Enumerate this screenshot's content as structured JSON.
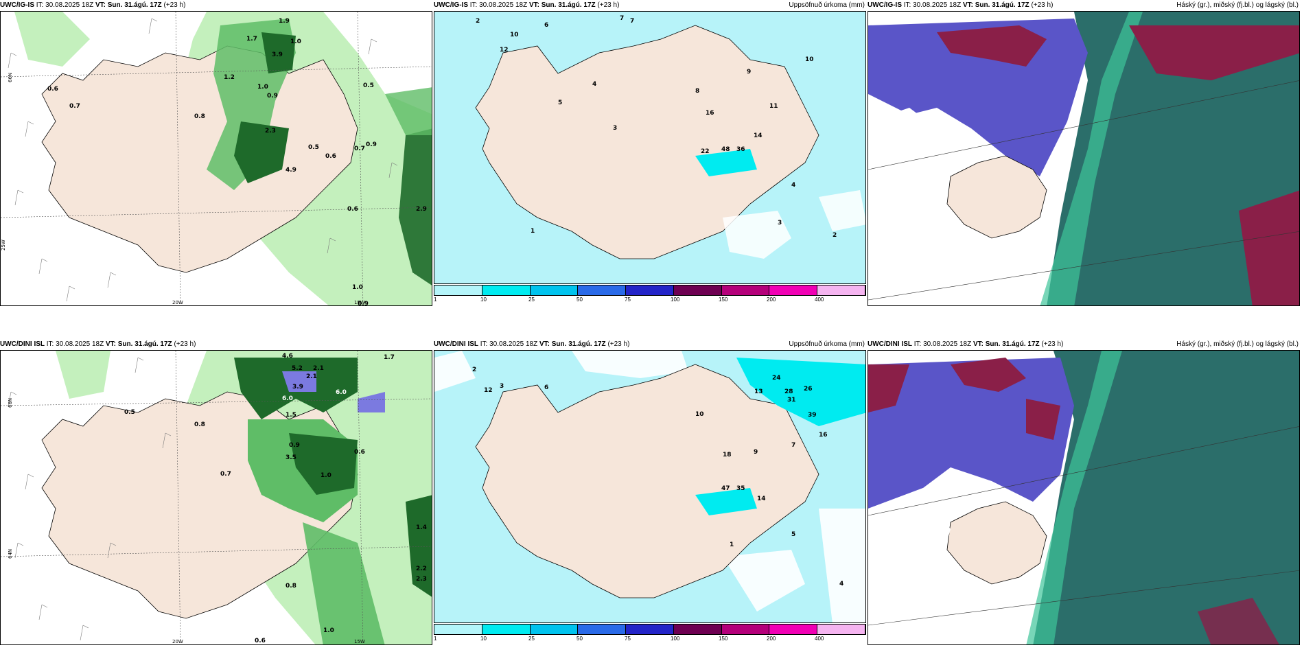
{
  "panels": {
    "p1": {
      "model": "UWC/IG-IS",
      "it": "30.08.2025 18Z",
      "vt": "Sun. 31.ágú. 17Z",
      "lead": "(+23 h)",
      "product": ""
    },
    "p2": {
      "model": "UWC/IG-IS",
      "it": "30.08.2025 18Z",
      "vt": "Sun. 31.ágú. 17Z",
      "lead": "(+23 h)",
      "product": "Uppsöfnuð úrkoma (mm)"
    },
    "p3": {
      "model": "UWC/IG-IS",
      "it": "30.08.2025 18Z",
      "vt": "Sun. 31.ágú. 17Z",
      "lead": "(+23 h)",
      "product": "Háský (gr.), miðský (fj.bl.) og lágský (bl.)"
    },
    "p4": {
      "model": "UWC/DINI ISL",
      "it": "30.08.2025 18Z",
      "vt": "Sun. 31.ágú. 17Z",
      "lead": "(+23 h)",
      "product": ""
    },
    "p5": {
      "model": "UWC/DINI ISL",
      "it": "30.08.2025 18Z",
      "vt": "Sun. 31.ágú. 17Z",
      "lead": "(+23 h)",
      "product": "Uppsöfnuð úrkoma (mm)"
    },
    "p6": {
      "model": "UWC/DINI ISL",
      "it": "30.08.2025 18Z",
      "vt": "Sun. 31.ágú. 17Z",
      "lead": "(+23 h)",
      "product": "Háský (gr.), miðský (fj.bl.) og lágský (bl.)"
    }
  },
  "labels": {
    "it": "IT:",
    "vt": "VT:"
  },
  "axis": {
    "lon20": "20W",
    "lon15": "15W",
    "lat66": "66N",
    "lat64": "64N",
    "lat25": "25W"
  },
  "legend": {
    "ticks": [
      "1",
      "10",
      "25",
      "50",
      "75",
      "100",
      "150",
      "200",
      "400"
    ],
    "colors": [
      "#b4f5fa",
      "#00ebf0",
      "#00c3ee",
      "#2a6ae8",
      "#2324c8",
      "#6e0052",
      "#b4007a",
      "#f000b4",
      "#f5b4f0"
    ]
  },
  "colors": {
    "land": "#f6e6da",
    "sea_precip": "#b7f3f9",
    "green_light": "#c4f0bd",
    "green_mid": "#5fbd67",
    "green_dark": "#1e6a2a",
    "high_cloud": "#2b6e6a",
    "mid_cloud": "#5a55c8",
    "low_cloud": "#8a1f48"
  },
  "map1_values": [
    "3.9",
    "1.9",
    "1.7",
    "1.0",
    "1.2",
    "0.6",
    "0.5",
    "0.8",
    "1.0",
    "0.9",
    "0.7",
    "2.3",
    "0.5",
    "0.6",
    "4.9",
    "0.7",
    "0.9",
    "2.9",
    "0.6",
    "1.0",
    "0.9"
  ],
  "map2_values": [
    "2",
    "6",
    "7",
    "10",
    "12",
    "8",
    "4",
    "5",
    "3",
    "9",
    "16",
    "22",
    "48",
    "36",
    "14",
    "10",
    "11",
    "7",
    "4",
    "3",
    "2",
    "1"
  ],
  "map4_values": [
    "4.6",
    "5.2",
    "6.0",
    "2.1",
    "3.9",
    "6.0",
    "0.8",
    "0.5",
    "1.7",
    "2.1",
    "1.5",
    "3.5",
    "0.9",
    "0.7",
    "1.0",
    "0.6",
    "0.8",
    "1.4",
    "2.2",
    "2.3",
    "0.6",
    "1.0"
  ],
  "map5_values": [
    "2",
    "3",
    "6",
    "12",
    "13",
    "24",
    "28",
    "31",
    "26",
    "39",
    "16",
    "18",
    "47",
    "35",
    "14",
    "10",
    "9",
    "7",
    "5",
    "4",
    "1"
  ]
}
